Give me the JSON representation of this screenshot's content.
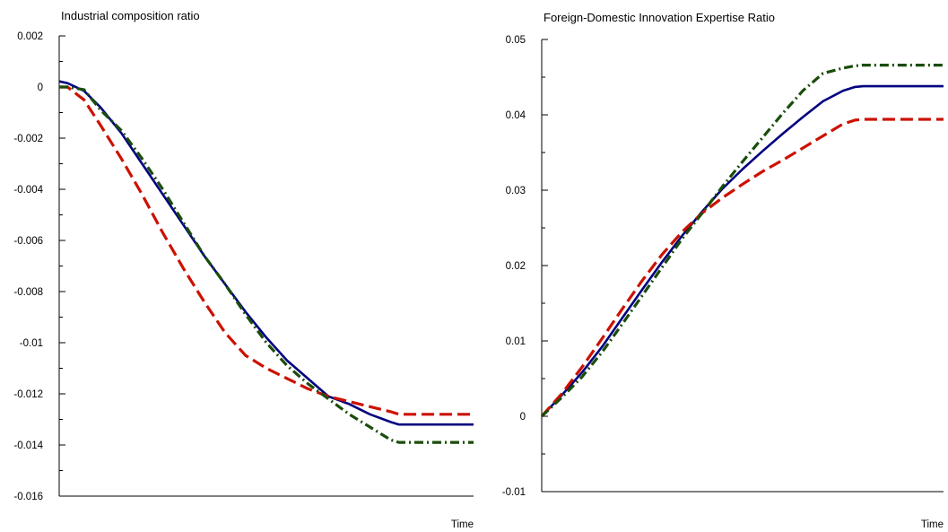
{
  "chart_data": [
    {
      "type": "line",
      "title": "Industrial composition ratio",
      "xlabel": "Time",
      "ylabel": "",
      "ylim": [
        -0.016,
        0.002
      ],
      "yticks": [
        0.002,
        0,
        -0.002,
        -0.004,
        -0.006,
        -0.008,
        -0.01,
        -0.012,
        -0.014,
        -0.016
      ],
      "ytick_labels": [
        "0.002",
        "0",
        "-0.002",
        "-0.004",
        "-0.006",
        "-0.008",
        "-0.01",
        "-0.012",
        "-0.014",
        "-0.016"
      ],
      "xlim": [
        0,
        100
      ],
      "grid": false,
      "legend": "none",
      "series": [
        {
          "color": "#000080",
          "style": "solid",
          "x": [
            0,
            2,
            6,
            10,
            15,
            20,
            25,
            30,
            35,
            40,
            45,
            50,
            55,
            60,
            65,
            70,
            75,
            80,
            82,
            85,
            90,
            95,
            100
          ],
          "y": [
            0.00022,
            0.00015,
            -0.00015,
            -0.0008,
            -0.0018,
            -0.003,
            -0.0042,
            -0.0054,
            -0.0066,
            -0.0077,
            -0.0088,
            -0.0098,
            -0.0107,
            -0.0114,
            -0.0121,
            -0.0124,
            -0.0128,
            -0.0131,
            -0.0132,
            -0.0132,
            -0.0132,
            -0.0132,
            -0.0132
          ]
        },
        {
          "color": "#cc1100",
          "style": "dash",
          "x": [
            0,
            2,
            6,
            10,
            15,
            20,
            25,
            30,
            35,
            40,
            45,
            50,
            55,
            60,
            65,
            70,
            75,
            80,
            82,
            85,
            90,
            95,
            100
          ],
          "y": [
            0.0,
            0.0,
            -0.0005,
            -0.0015,
            -0.0028,
            -0.0042,
            -0.0057,
            -0.0071,
            -0.0084,
            -0.0096,
            -0.0105,
            -0.011,
            -0.0114,
            -0.0118,
            -0.0121,
            -0.0123,
            -0.0125,
            -0.0127,
            -0.0128,
            -0.0128,
            -0.0128,
            -0.0128,
            -0.0128
          ]
        },
        {
          "color": "#1a4d0a",
          "style": "dashdot",
          "x": [
            0,
            2,
            6,
            10,
            15,
            20,
            25,
            30,
            35,
            40,
            45,
            50,
            55,
            60,
            65,
            70,
            75,
            78,
            80,
            82,
            85,
            90,
            95,
            100
          ],
          "y": [
            0.0,
            0.0,
            -0.0001,
            -0.0009,
            -0.0017,
            -0.0028,
            -0.004,
            -0.0053,
            -0.0066,
            -0.0077,
            -0.0089,
            -0.01,
            -0.0109,
            -0.0116,
            -0.0122,
            -0.0128,
            -0.0133,
            -0.0136,
            -0.0138,
            -0.0139,
            -0.0139,
            -0.0139,
            -0.0139,
            -0.0139
          ]
        }
      ]
    },
    {
      "type": "line",
      "title": "Foreign-Domestic Innovation Expertise Ratio",
      "xlabel": "Time",
      "ylabel": "",
      "ylim": [
        -0.01,
        0.05
      ],
      "yticks": [
        0.05,
        0.04,
        0.03,
        0.02,
        0.01,
        0,
        -0.01
      ],
      "ytick_labels": [
        "0.05",
        "0.04",
        "0.03",
        "0.02",
        "0.01",
        "0",
        "-0.01"
      ],
      "xlim": [
        0,
        100
      ],
      "grid": false,
      "legend": "none",
      "series": [
        {
          "color": "#000080",
          "style": "solid",
          "x": [
            0,
            5,
            10,
            15,
            20,
            25,
            30,
            35,
            40,
            45,
            50,
            55,
            60,
            65,
            70,
            75,
            78,
            80,
            82,
            85,
            90,
            95,
            100
          ],
          "y": [
            0.0,
            0.0028,
            0.0058,
            0.0092,
            0.013,
            0.0168,
            0.0205,
            0.024,
            0.0272,
            0.0302,
            0.0328,
            0.0352,
            0.0375,
            0.0397,
            0.0418,
            0.0432,
            0.0437,
            0.0438,
            0.0438,
            0.0438,
            0.0438,
            0.0438,
            0.0438
          ]
        },
        {
          "color": "#cc1100",
          "style": "dash",
          "x": [
            0,
            5,
            10,
            15,
            20,
            25,
            30,
            35,
            40,
            45,
            50,
            55,
            60,
            65,
            70,
            75,
            78,
            80,
            82,
            85,
            90,
            95,
            100
          ],
          "y": [
            0.0,
            0.003,
            0.0065,
            0.0103,
            0.0142,
            0.018,
            0.0215,
            0.0245,
            0.027,
            0.029,
            0.0308,
            0.0325,
            0.034,
            0.0356,
            0.0372,
            0.0388,
            0.0393,
            0.0394,
            0.0394,
            0.0394,
            0.0394,
            0.0394,
            0.0394
          ]
        },
        {
          "color": "#1a4d0a",
          "style": "dashdot",
          "x": [
            0,
            5,
            10,
            15,
            20,
            25,
            30,
            35,
            40,
            45,
            50,
            55,
            60,
            65,
            70,
            75,
            78,
            80,
            82,
            85,
            90,
            95,
            100
          ],
          "y": [
            0.0,
            0.0025,
            0.0052,
            0.0085,
            0.0122,
            0.016,
            0.0198,
            0.0236,
            0.027,
            0.0305,
            0.0338,
            0.037,
            0.0402,
            0.0432,
            0.0455,
            0.0462,
            0.0465,
            0.0466,
            0.0466,
            0.0466,
            0.0466,
            0.0466,
            0.0466
          ]
        }
      ]
    }
  ]
}
